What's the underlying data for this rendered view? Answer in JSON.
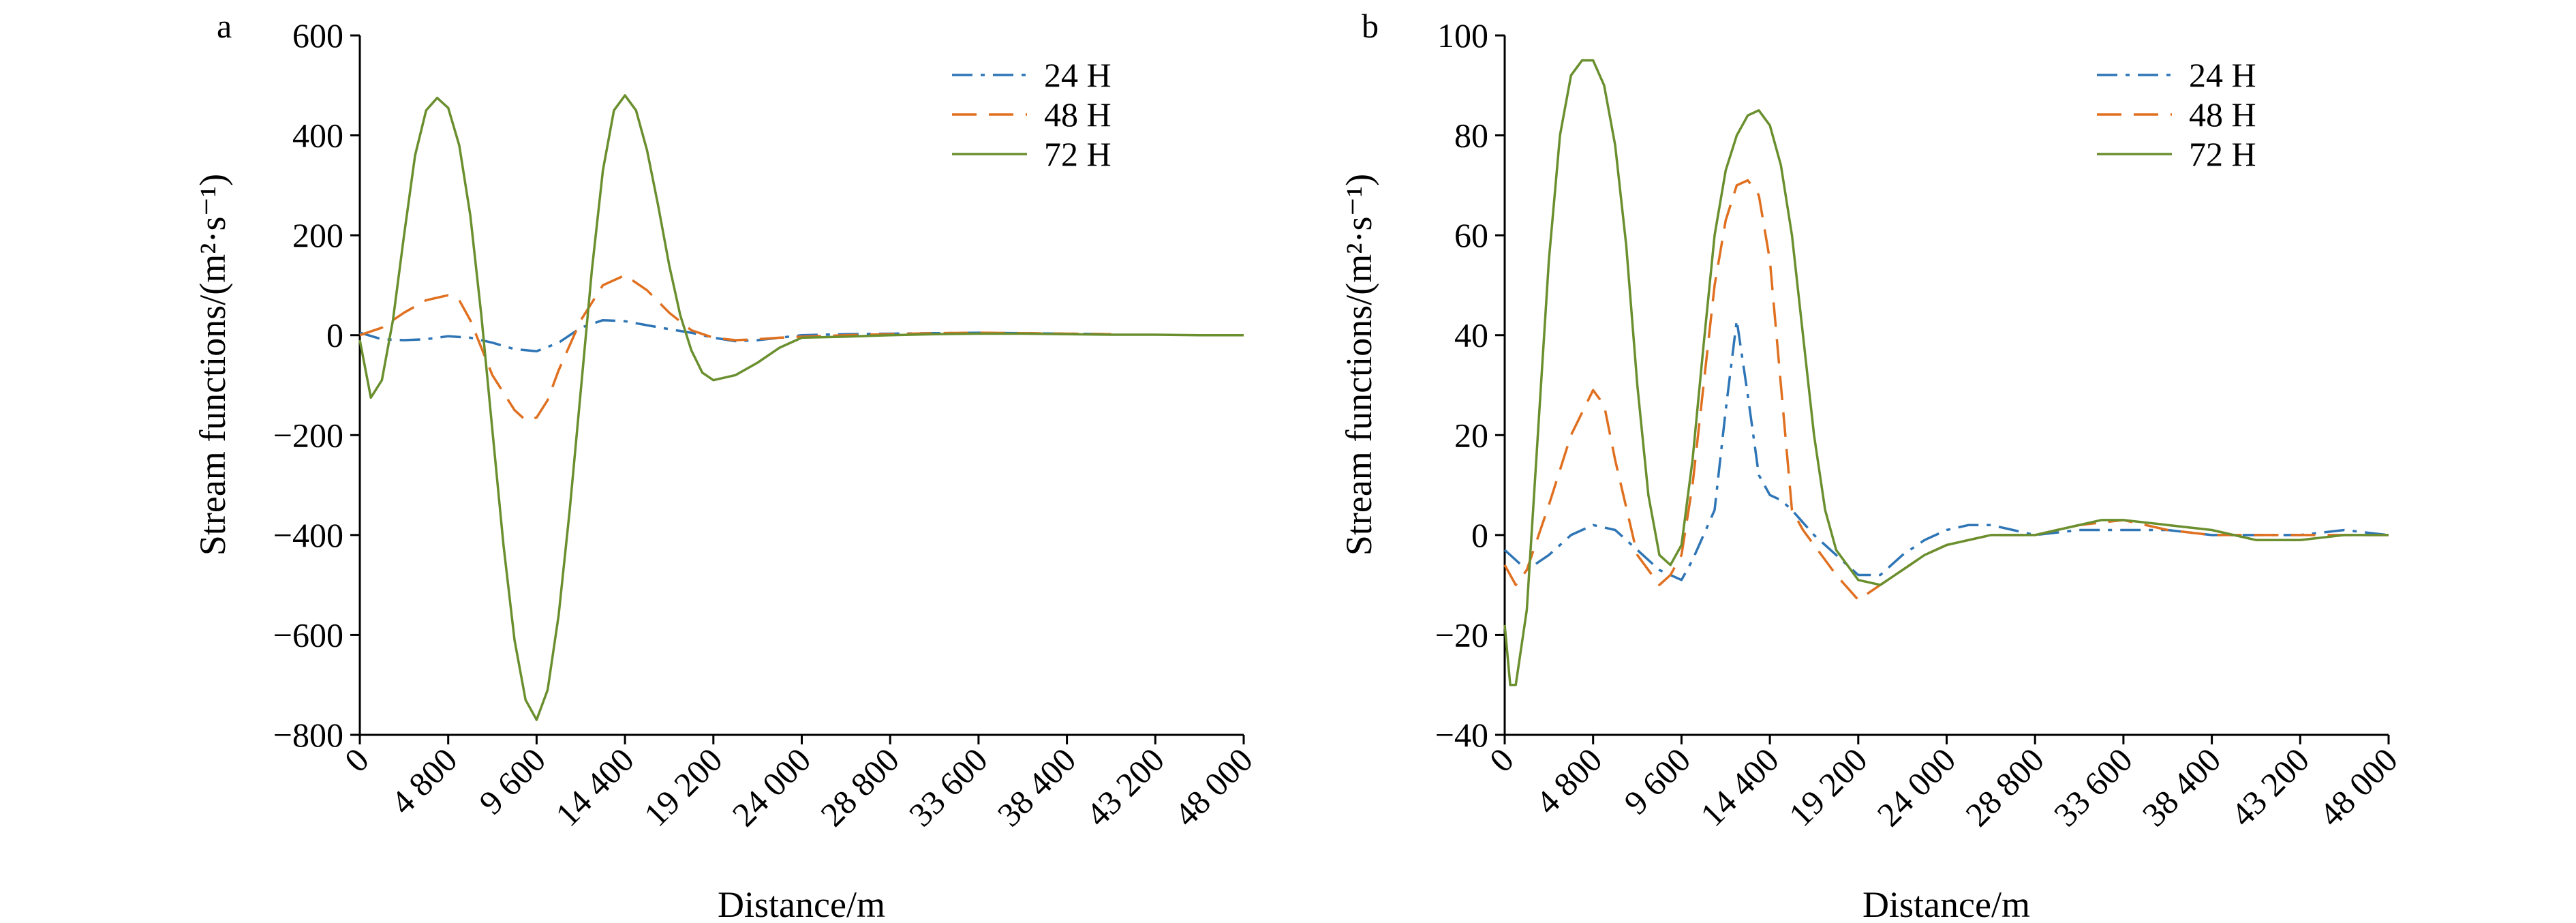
{
  "chart_data": [
    {
      "type": "line",
      "panel_label": "a",
      "xlabel": "Distance/m",
      "ylabel": "Stream functions/(m²·s⁻¹)",
      "xlim": [
        0,
        48000
      ],
      "ylim": [
        -800,
        600
      ],
      "x_ticks": [
        0,
        4800,
        9600,
        14400,
        19200,
        24000,
        28800,
        33600,
        38400,
        43200,
        48000
      ],
      "x_tick_labels": [
        "0",
        "4 800",
        "9 600",
        "14 400",
        "19 200",
        "24 000",
        "28 800",
        "33 600",
        "38 400",
        "43 200",
        "48 000"
      ],
      "y_ticks": [
        -800,
        -600,
        -400,
        -200,
        0,
        200,
        400,
        600
      ],
      "y_tick_labels": [
        "−800",
        "−600",
        "−400",
        "−200",
        "0",
        "200",
        "400",
        "600"
      ],
      "legend_position": "top-right",
      "series": [
        {
          "name": "24 H",
          "color": "#2e75b6",
          "dash": "dashdot",
          "x": [
            0,
            1200,
            2400,
            3600,
            4800,
            6000,
            7200,
            8400,
            9600,
            10800,
            12000,
            13200,
            14400,
            15600,
            16800,
            18000,
            19200,
            20400,
            21600,
            22800,
            24000,
            26400,
            28800,
            31200,
            33600,
            36000,
            38400,
            40800
          ],
          "y": [
            5,
            -8,
            -10,
            -8,
            -2,
            -5,
            -15,
            -28,
            -32,
            -15,
            15,
            30,
            28,
            20,
            12,
            5,
            -5,
            -12,
            -10,
            -5,
            0,
            2,
            3,
            4,
            5,
            4,
            3,
            2
          ]
        },
        {
          "name": "48 H",
          "color": "#e07020",
          "dash": "longdash",
          "x": [
            0,
            1200,
            2400,
            3600,
            4800,
            5400,
            6000,
            7200,
            8400,
            9000,
            9600,
            10200,
            10800,
            12000,
            13200,
            14400,
            15600,
            16800,
            18000,
            19200,
            20400,
            21600,
            22800,
            24000,
            26400,
            28800,
            31200,
            33600,
            36000,
            38400,
            40800
          ],
          "y": [
            0,
            15,
            45,
            70,
            80,
            70,
            30,
            -80,
            -150,
            -170,
            -165,
            -130,
            -70,
            30,
            100,
            120,
            90,
            45,
            10,
            -5,
            -10,
            -8,
            -5,
            -3,
            0,
            2,
            4,
            5,
            4,
            3,
            2
          ]
        },
        {
          "name": "72 H",
          "color": "#6a8f2e",
          "dash": "solid",
          "x": [
            0,
            600,
            1200,
            1800,
            2400,
            3000,
            3600,
            4200,
            4800,
            5400,
            6000,
            6600,
            7200,
            7800,
            8400,
            9000,
            9600,
            10200,
            10800,
            11400,
            12000,
            12600,
            13200,
            13800,
            14400,
            15000,
            15600,
            16200,
            16800,
            17400,
            18000,
            18600,
            19200,
            20400,
            21600,
            22800,
            24000,
            26400,
            28800,
            31200,
            33600,
            36000,
            38400,
            40800,
            43200,
            45600,
            48000
          ],
          "y": [
            -10,
            -125,
            -90,
            30,
            200,
            360,
            450,
            475,
            455,
            380,
            240,
            40,
            -190,
            -420,
            -610,
            -730,
            -770,
            -710,
            -560,
            -350,
            -110,
            130,
            330,
            450,
            480,
            450,
            370,
            260,
            140,
            40,
            -30,
            -75,
            -90,
            -80,
            -55,
            -25,
            -5,
            -3,
            0,
            2,
            3,
            3,
            2,
            1,
            1,
            0,
            0
          ]
        }
      ]
    },
    {
      "type": "line",
      "panel_label": "b",
      "xlabel": "Distance/m",
      "ylabel": "Stream functions/(m²·s⁻¹)",
      "xlim": [
        0,
        48000
      ],
      "ylim": [
        -40,
        100
      ],
      "x_ticks": [
        0,
        4800,
        9600,
        14400,
        19200,
        24000,
        28800,
        33600,
        38400,
        43200,
        48000
      ],
      "x_tick_labels": [
        "0",
        "4 800",
        "9 600",
        "14 400",
        "19 200",
        "24 000",
        "28 800",
        "33 600",
        "38 400",
        "43 200",
        "48 000"
      ],
      "y_ticks": [
        -40,
        -20,
        0,
        20,
        40,
        60,
        80,
        100
      ],
      "y_tick_labels": [
        "−40",
        "−20",
        "0",
        "20",
        "40",
        "60",
        "80",
        "100"
      ],
      "legend_position": "top-right",
      "series": [
        {
          "name": "24 H",
          "color": "#2e75b6",
          "dash": "dashdot",
          "x": [
            0,
            600,
            1200,
            2400,
            3600,
            4800,
            6000,
            7200,
            8400,
            9000,
            9600,
            10200,
            11400,
            12000,
            12600,
            13200,
            13800,
            14400,
            15000,
            15600,
            16800,
            18000,
            19200,
            20400,
            21600,
            22800,
            24000,
            25200,
            26400,
            27600,
            28800,
            31200,
            33600,
            36000,
            38400,
            40800,
            43200,
            45600,
            48000
          ],
          "y": [
            -3,
            -5,
            -7,
            -4,
            0,
            2,
            1,
            -3,
            -7,
            -8,
            -9,
            -5,
            5,
            25,
            43,
            28,
            12,
            8,
            7,
            5,
            0,
            -4,
            -8,
            -8,
            -4,
            -1,
            1,
            2,
            2,
            1,
            0,
            1,
            1,
            1,
            0,
            0,
            0,
            1,
            0
          ]
        },
        {
          "name": "48 H",
          "color": "#e07020",
          "dash": "longdash",
          "x": [
            0,
            600,
            1200,
            2400,
            3600,
            4800,
            5400,
            6000,
            7200,
            8400,
            9000,
            9600,
            10200,
            10800,
            11400,
            12000,
            12600,
            13200,
            13800,
            14400,
            15000,
            15600,
            16200,
            16800,
            17400,
            18000,
            19200,
            20400,
            21600,
            22800,
            24000,
            25200,
            26400,
            27600,
            28800,
            31200,
            33600,
            36000,
            38400,
            40800,
            43200,
            45600,
            48000
          ],
          "y": [
            -6,
            -10,
            -7,
            6,
            20,
            29,
            26,
            15,
            -4,
            -10,
            -8,
            -4,
            10,
            30,
            50,
            63,
            70,
            71,
            68,
            55,
            30,
            5,
            1,
            -2,
            -5,
            -8,
            -13,
            -10,
            -7,
            -4,
            -2,
            -1,
            0,
            0,
            0,
            2,
            3,
            1,
            0,
            0,
            0,
            0,
            0
          ]
        },
        {
          "name": "72 H",
          "color": "#6a8f2e",
          "dash": "solid",
          "x": [
            0,
            300,
            600,
            1200,
            1800,
            2400,
            3000,
            3600,
            4200,
            4800,
            5400,
            6000,
            6600,
            7200,
            7800,
            8400,
            9000,
            9600,
            10200,
            10800,
            11400,
            12000,
            12600,
            13200,
            13800,
            14400,
            15000,
            15600,
            16200,
            16800,
            17400,
            18000,
            19200,
            20400,
            21600,
            22800,
            24000,
            25200,
            26400,
            27600,
            28800,
            30000,
            31200,
            32400,
            33600,
            36000,
            38400,
            40800,
            43200,
            45600,
            48000
          ],
          "y": [
            -18,
            -30,
            -30,
            -15,
            20,
            55,
            80,
            92,
            95,
            95,
            90,
            78,
            58,
            30,
            8,
            -4,
            -6,
            -2,
            15,
            38,
            60,
            73,
            80,
            84,
            85,
            82,
            74,
            60,
            40,
            20,
            5,
            -3,
            -9,
            -10,
            -7,
            -4,
            -2,
            -1,
            0,
            0,
            0,
            1,
            2,
            3,
            3,
            2,
            1,
            -1,
            -1,
            0,
            0
          ]
        }
      ]
    }
  ]
}
